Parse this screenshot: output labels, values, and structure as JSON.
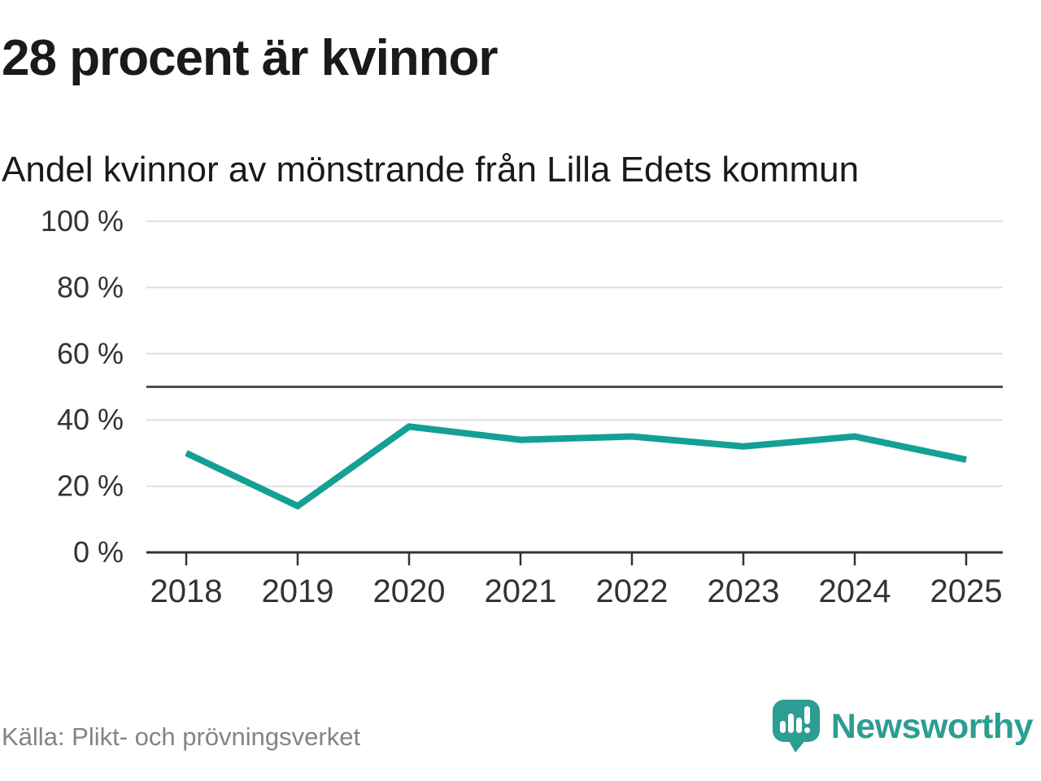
{
  "header": {
    "title": "28 procent är kvinnor",
    "subtitle": "Andel kvinnor av mönstrande från Lilla Edets kommun"
  },
  "chart_data": {
    "type": "line",
    "title": "28 procent är kvinnor",
    "subtitle": "Andel kvinnor av mönstrande från Lilla Edets kommun",
    "categories": [
      "2018",
      "2019",
      "2020",
      "2021",
      "2022",
      "2023",
      "2024",
      "2025"
    ],
    "series": [
      {
        "name": "Andel kvinnor av mönstrande",
        "values": [
          30,
          14,
          38,
          34,
          35,
          32,
          35,
          28
        ]
      }
    ],
    "unit": "%",
    "ylim": [
      0,
      100
    ],
    "yticks": [
      0,
      20,
      40,
      60,
      80,
      100
    ],
    "ytick_suffix": " %",
    "reference_line": 50,
    "grid": true,
    "legend": "none",
    "colors": {
      "line": "#14a094",
      "grid": "#e0e0e0",
      "reference": "#4d4d4d",
      "axis": "#333333",
      "tick_label": "#333333"
    }
  },
  "footer": {
    "source": "Källa: Plikt- och prövningsverket",
    "brand": "Newsworthy",
    "brand_color": "#2c9d92"
  }
}
